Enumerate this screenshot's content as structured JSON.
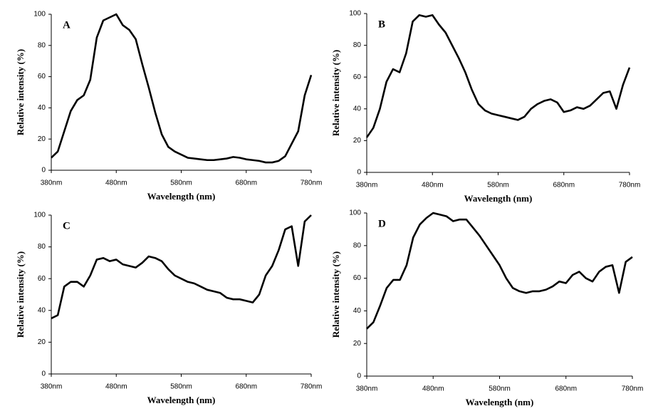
{
  "chart_data": [
    {
      "type": "line",
      "title": "A",
      "xlabel": "Wavelength (nm)",
      "ylabel": "Relative intensity (%)",
      "x": [
        380,
        390,
        400,
        410,
        420,
        430,
        440,
        450,
        460,
        470,
        480,
        490,
        500,
        510,
        520,
        530,
        540,
        550,
        560,
        570,
        580,
        590,
        600,
        610,
        620,
        630,
        640,
        650,
        660,
        670,
        680,
        690,
        700,
        710,
        720,
        730,
        740,
        750,
        760,
        770,
        780
      ],
      "values": [
        8,
        12,
        25,
        38,
        45,
        48,
        58,
        85,
        96,
        98,
        100,
        93,
        90,
        84,
        68,
        53,
        37,
        23,
        15,
        12,
        10,
        8,
        7.5,
        7,
        6.5,
        6.5,
        7,
        7.5,
        8.5,
        8,
        7,
        6.5,
        6,
        5,
        5,
        6,
        9,
        17,
        25,
        48,
        61
      ],
      "color": "#000000",
      "xlim": [
        380,
        780
      ],
      "ylim": [
        0,
        100
      ],
      "xticks": [
        {
          "value": 380,
          "label": "380nm"
        },
        {
          "value": 480,
          "label": "480nm"
        },
        {
          "value": 580,
          "label": "580nm"
        },
        {
          "value": 680,
          "label": "680nm"
        },
        {
          "value": 780,
          "label": "780nm"
        }
      ],
      "yticks": [
        0,
        20,
        40,
        60,
        80,
        100
      ]
    },
    {
      "type": "line",
      "title": "B",
      "xlabel": "Wavelength (nm)",
      "ylabel": "Relative intensity (%)",
      "x": [
        380,
        390,
        400,
        410,
        420,
        430,
        440,
        450,
        460,
        470,
        480,
        490,
        500,
        510,
        520,
        530,
        540,
        550,
        560,
        570,
        580,
        590,
        600,
        610,
        620,
        630,
        640,
        650,
        660,
        670,
        680,
        690,
        700,
        710,
        720,
        730,
        740,
        750,
        760,
        770,
        780
      ],
      "values": [
        22,
        28,
        40,
        57,
        65,
        63,
        75,
        95,
        99,
        98,
        99,
        93,
        88,
        80,
        72,
        63,
        52,
        43,
        39,
        37,
        36,
        35,
        34,
        33,
        35,
        40,
        43,
        45,
        46,
        44,
        38,
        39,
        41,
        40,
        42,
        46,
        50,
        51,
        40,
        55,
        66
      ],
      "color": "#000000",
      "xlim": [
        380,
        780
      ],
      "ylim": [
        0,
        100
      ],
      "xticks": [
        {
          "value": 380,
          "label": "380nm"
        },
        {
          "value": 480,
          "label": "480nm"
        },
        {
          "value": 580,
          "label": "580nm"
        },
        {
          "value": 680,
          "label": "680nm"
        },
        {
          "value": 780,
          "label": "780nm"
        }
      ],
      "yticks": [
        0,
        20,
        40,
        60,
        80,
        100
      ]
    },
    {
      "type": "line",
      "title": "C",
      "xlabel": "Wavelength (nm)",
      "ylabel": "Relative intensity (%)",
      "x": [
        380,
        390,
        400,
        410,
        420,
        430,
        440,
        450,
        460,
        470,
        480,
        490,
        500,
        510,
        520,
        530,
        540,
        550,
        560,
        570,
        580,
        590,
        600,
        610,
        620,
        630,
        640,
        650,
        660,
        670,
        680,
        690,
        700,
        710,
        720,
        730,
        740,
        750,
        760,
        770,
        780
      ],
      "values": [
        35,
        37,
        55,
        58,
        58,
        55,
        62,
        72,
        73,
        71,
        72,
        69,
        68,
        67,
        70,
        74,
        73,
        71,
        66,
        62,
        60,
        58,
        57,
        55,
        53,
        52,
        51,
        48,
        47,
        47,
        46,
        45,
        50,
        62,
        68,
        78,
        91,
        93,
        68,
        96,
        100
      ],
      "color": "#000000",
      "xlim": [
        380,
        780
      ],
      "ylim": [
        0,
        100
      ],
      "xticks": [
        {
          "value": 380,
          "label": "380nm"
        },
        {
          "value": 480,
          "label": "480nm"
        },
        {
          "value": 580,
          "label": "580nm"
        },
        {
          "value": 680,
          "label": "680nm"
        },
        {
          "value": 780,
          "label": "780nm"
        }
      ],
      "yticks": [
        0,
        20,
        40,
        60,
        80,
        100
      ]
    },
    {
      "type": "line",
      "title": "D",
      "xlabel": "Wavelength (nm)",
      "ylabel": "Relative intensity (%)",
      "x": [
        380,
        390,
        400,
        410,
        420,
        430,
        440,
        450,
        460,
        470,
        480,
        490,
        500,
        510,
        520,
        530,
        540,
        550,
        560,
        570,
        580,
        590,
        600,
        610,
        620,
        630,
        640,
        650,
        660,
        670,
        680,
        690,
        700,
        710,
        720,
        730,
        740,
        750,
        760,
        770,
        780
      ],
      "values": [
        29,
        33,
        43,
        54,
        59,
        59,
        68,
        85,
        93,
        97,
        100,
        99,
        98,
        95,
        96,
        96,
        91,
        86,
        80,
        74,
        68,
        60,
        54,
        52,
        51,
        52,
        52,
        53,
        55,
        58,
        57,
        62,
        64,
        60,
        58,
        64,
        67,
        68,
        51,
        70,
        73
      ],
      "color": "#000000",
      "xlim": [
        380,
        780
      ],
      "ylim": [
        0,
        100
      ],
      "xticks": [
        {
          "value": 380,
          "label": "380nm"
        },
        {
          "value": 480,
          "label": "480nm"
        },
        {
          "value": 580,
          "label": "580nm"
        },
        {
          "value": 680,
          "label": "680nm"
        },
        {
          "value": 780,
          "label": "780nm"
        }
      ],
      "yticks": [
        0,
        20,
        40,
        60,
        80,
        100
      ]
    }
  ]
}
